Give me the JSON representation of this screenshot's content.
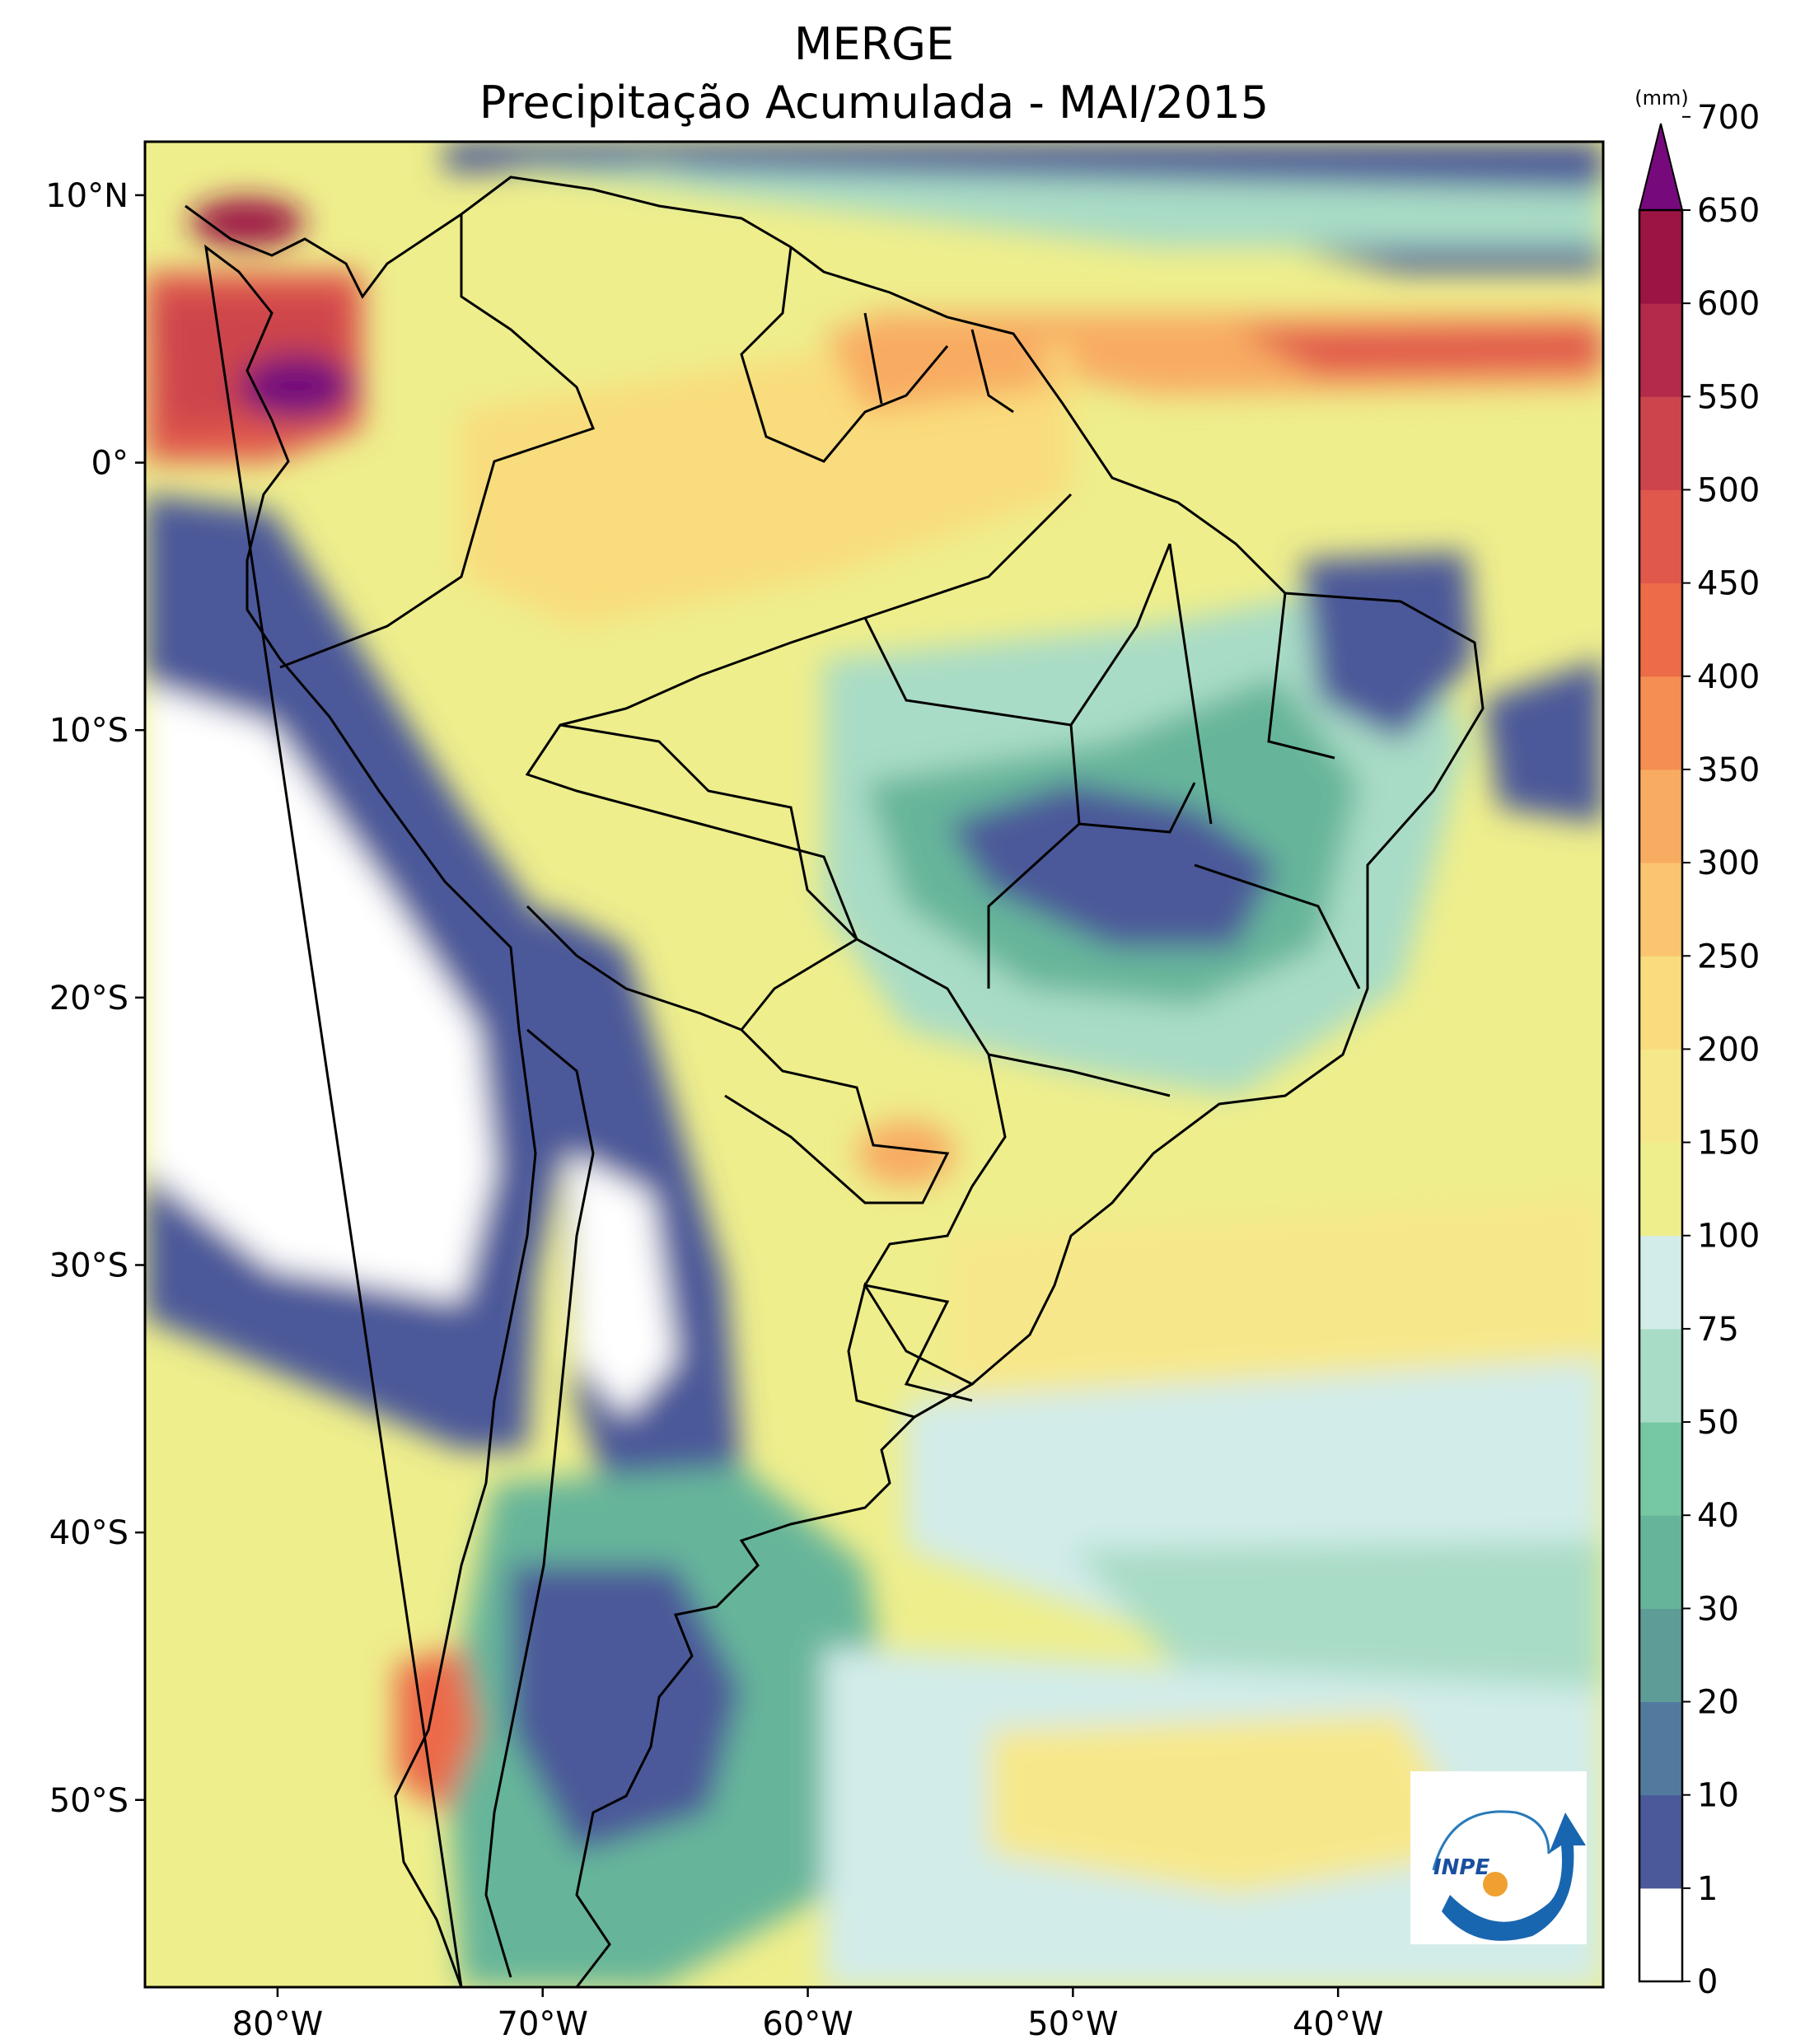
{
  "title": {
    "line1": "MERGE",
    "line2": "Precipitação Acumulada - MAI/2015"
  },
  "map": {
    "region": "South America",
    "lon_range": [
      -85,
      -30
    ],
    "lat_range": [
      -57,
      12
    ],
    "lon_ticks": [
      {
        "value": -80,
        "label": "80°W"
      },
      {
        "value": -70,
        "label": "70°W"
      },
      {
        "value": -60,
        "label": "60°W"
      },
      {
        "value": -50,
        "label": "50°W"
      },
      {
        "value": -40,
        "label": "40°W"
      }
    ],
    "lat_ticks": [
      {
        "value": 10,
        "label": "10°N"
      },
      {
        "value": 0,
        "label": "0°"
      },
      {
        "value": -10,
        "label": "10°S"
      },
      {
        "value": -20,
        "label": "20°S"
      },
      {
        "value": -30,
        "label": "30°S"
      },
      {
        "value": -40,
        "label": "40°S"
      },
      {
        "value": -50,
        "label": "50°S"
      }
    ]
  },
  "colorbar": {
    "unit": "(mm)",
    "levels": [
      "0",
      "1",
      "10",
      "20",
      "30",
      "40",
      "50",
      "75",
      "100",
      "150",
      "200",
      "250",
      "300",
      "350",
      "400",
      "450",
      "500",
      "550",
      "600",
      "650",
      "700"
    ],
    "colors": [
      "#ffffff",
      "#4b5899",
      "#527a9e",
      "#5e9c97",
      "#66b59a",
      "#76c8a2",
      "#a9dcc6",
      "#d2ecea",
      "#eeee8c",
      "#f6e88a",
      "#f9dc7d",
      "#fbc471",
      "#f8ac62",
      "#f48e52",
      "#ec6b48",
      "#e0584b",
      "#cd454c",
      "#b32a4a",
      "#9c1444"
    ],
    "extend_color": "#760a7c"
  },
  "logo": {
    "text": "INPE"
  }
}
